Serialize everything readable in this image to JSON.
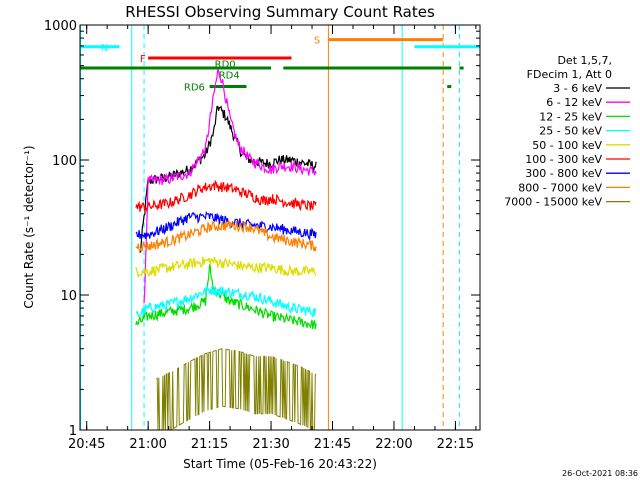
{
  "chart_data": {
    "type": "line",
    "title": "RHESSI Observing Summary Count Rates",
    "xlabel": "Start Time (05-Feb-16 20:43:22)",
    "ylabel": "Count Rate (s⁻¹ detector⁻¹)",
    "ylim": [
      1,
      1000
    ],
    "yscale": "log",
    "xlim": [
      "20:43:22",
      "22:21:00"
    ],
    "x_ticks": [
      "20:45",
      "21:00",
      "21:15",
      "21:30",
      "21:45",
      "22:00",
      "22:15"
    ],
    "y_ticks": [
      "1",
      "10",
      "100",
      "1000"
    ],
    "timestamp": "26-Oct-2021 08:36",
    "legend": {
      "header": [
        "Det 1,5,7,",
        "FDecim 1, Att 0"
      ],
      "placement": "right"
    },
    "series": [
      {
        "name": "3 - 6 keV",
        "color": "#000000",
        "points": [
          [
            "20:58",
            20
          ],
          [
            "21:00",
            70
          ],
          [
            "21:05",
            75
          ],
          [
            "21:10",
            85
          ],
          [
            "21:14",
            110
          ],
          [
            "21:16",
            160
          ],
          [
            "21:17",
            250
          ],
          [
            "21:19",
            210
          ],
          [
            "21:21",
            150
          ],
          [
            "21:23",
            110
          ],
          [
            "21:25",
            100
          ],
          [
            "21:28",
            95
          ],
          [
            "21:30",
            95
          ],
          [
            "21:32",
            100
          ],
          [
            "21:35",
            100
          ],
          [
            "21:38",
            95
          ],
          [
            "21:41",
            90
          ]
        ]
      },
      {
        "name": "6 - 12 keV",
        "color": "#ff00ff",
        "points": [
          [
            "20:59",
            8
          ],
          [
            "21:00",
            70
          ],
          [
            "21:05",
            72
          ],
          [
            "21:10",
            80
          ],
          [
            "21:14",
            120
          ],
          [
            "21:16",
            300
          ],
          [
            "21:17",
            450
          ],
          [
            "21:18",
            400
          ],
          [
            "21:20",
            200
          ],
          [
            "21:22",
            130
          ],
          [
            "21:25",
            100
          ],
          [
            "21:28",
            90
          ],
          [
            "21:30",
            85
          ],
          [
            "21:32",
            90
          ],
          [
            "21:35",
            90
          ],
          [
            "21:38",
            85
          ],
          [
            "21:41",
            82
          ]
        ]
      },
      {
        "name": "12 - 25 keV",
        "color": "#00dd00",
        "points": [
          [
            "20:57",
            6
          ],
          [
            "21:00",
            7
          ],
          [
            "21:05",
            7.5
          ],
          [
            "21:10",
            8
          ],
          [
            "21:14",
            9
          ],
          [
            "21:15",
            16
          ],
          [
            "21:16",
            11
          ],
          [
            "21:20",
            9
          ],
          [
            "21:25",
            8
          ],
          [
            "21:30",
            7
          ],
          [
            "21:35",
            6.5
          ],
          [
            "21:41",
            6
          ]
        ]
      },
      {
        "name": "25 - 50 keV",
        "color": "#00ffff",
        "points": [
          [
            "20:57",
            7
          ],
          [
            "21:00",
            8
          ],
          [
            "21:05",
            8.5
          ],
          [
            "21:10",
            9.5
          ],
          [
            "21:15",
            11
          ],
          [
            "21:20",
            10.5
          ],
          [
            "21:25",
            10
          ],
          [
            "21:30",
            9
          ],
          [
            "21:35",
            8
          ],
          [
            "21:41",
            7.5
          ]
        ]
      },
      {
        "name": "50 - 100 keV",
        "color": "#dddd00",
        "points": [
          [
            "20:57",
            15
          ],
          [
            "21:00",
            15
          ],
          [
            "21:05",
            16
          ],
          [
            "21:10",
            17
          ],
          [
            "21:15",
            18
          ],
          [
            "21:20",
            17
          ],
          [
            "21:25",
            16
          ],
          [
            "21:30",
            16
          ],
          [
            "21:35",
            15
          ],
          [
            "21:41",
            15
          ]
        ]
      },
      {
        "name": "100 - 300 keV",
        "color": "#ff0000",
        "points": [
          [
            "20:57",
            45
          ],
          [
            "21:00",
            45
          ],
          [
            "21:05",
            48
          ],
          [
            "21:10",
            55
          ],
          [
            "21:13",
            62
          ],
          [
            "21:16",
            65
          ],
          [
            "21:20",
            62
          ],
          [
            "21:25",
            55
          ],
          [
            "21:28",
            50
          ],
          [
            "21:30",
            52
          ],
          [
            "21:35",
            48
          ],
          [
            "21:41",
            45
          ]
        ]
      },
      {
        "name": "300 - 800 keV",
        "color": "#0000ff",
        "points": [
          [
            "20:57",
            28
          ],
          [
            "21:00",
            28
          ],
          [
            "21:05",
            32
          ],
          [
            "21:10",
            38
          ],
          [
            "21:15",
            38
          ],
          [
            "21:20",
            35
          ],
          [
            "21:25",
            33
          ],
          [
            "21:30",
            32
          ],
          [
            "21:35",
            30
          ],
          [
            "21:41",
            28
          ]
        ]
      },
      {
        "name": "800 - 7000 keV",
        "color": "#ff8000",
        "points": [
          [
            "20:57",
            23
          ],
          [
            "21:00",
            23
          ],
          [
            "21:05",
            25
          ],
          [
            "21:10",
            28
          ],
          [
            "21:15",
            32
          ],
          [
            "21:20",
            33
          ],
          [
            "21:25",
            32
          ],
          [
            "21:30",
            27
          ],
          [
            "21:35",
            25
          ],
          [
            "21:41",
            23
          ]
        ]
      },
      {
        "name": "7000 - 15000 keV",
        "color": "#808000",
        "points": [
          [
            "21:02",
            1.5
          ],
          [
            "21:06",
            1.7
          ],
          [
            "21:10",
            2
          ],
          [
            "21:14",
            2.3
          ],
          [
            "21:18",
            2.5
          ],
          [
            "21:22",
            2.4
          ],
          [
            "21:26",
            2.2
          ],
          [
            "21:30",
            2.2
          ],
          [
            "21:34",
            2
          ],
          [
            "21:38",
            1.8
          ],
          [
            "21:41",
            1.6
          ]
        ]
      }
    ],
    "flag_bars": [
      {
        "label": "N",
        "color": "#00ffff",
        "y": 690,
        "segments": [
          [
            "20:43:22",
            "20:53"
          ],
          [
            "22:05",
            "22:21"
          ]
        ]
      },
      {
        "label": "S",
        "color": "#ff8000",
        "y": 780,
        "segments": [
          [
            "21:44",
            "22:12"
          ]
        ]
      },
      {
        "label": "F",
        "color": "#ff0000",
        "y": 570,
        "segments": [
          [
            "21:00",
            "21:35"
          ]
        ]
      },
      {
        "label": "",
        "color": "#008000",
        "y": 480,
        "segments": [
          [
            "20:43:22",
            "21:30"
          ],
          [
            "21:33",
            "22:14"
          ],
          [
            "22:16",
            "22:17"
          ]
        ]
      },
      {
        "label": "RD0",
        "color": "#008000",
        "y": 520,
        "segments": []
      },
      {
        "label": "RD4",
        "color": "#008000",
        "y": 430,
        "segments": []
      },
      {
        "label": "RD6",
        "color": "#008000",
        "y": 350,
        "segments": [
          [
            "21:15",
            "21:24"
          ],
          [
            "22:13",
            "22:14"
          ]
        ]
      }
    ],
    "vertical_lines": [
      {
        "x": "20:43:30",
        "color": "#00ffff",
        "style": "solid"
      },
      {
        "x": "20:56",
        "color": "#00ffff",
        "style": "solid"
      },
      {
        "x": "20:59",
        "color": "#00ffff",
        "style": "dashed"
      },
      {
        "x": "21:44",
        "color": "#ff8000",
        "style": "solid"
      },
      {
        "x": "22:02",
        "color": "#00ffff",
        "style": "solid"
      },
      {
        "x": "22:12",
        "color": "#ff8000",
        "style": "dashed"
      },
      {
        "x": "22:16",
        "color": "#00ffff",
        "style": "dashed"
      }
    ]
  }
}
